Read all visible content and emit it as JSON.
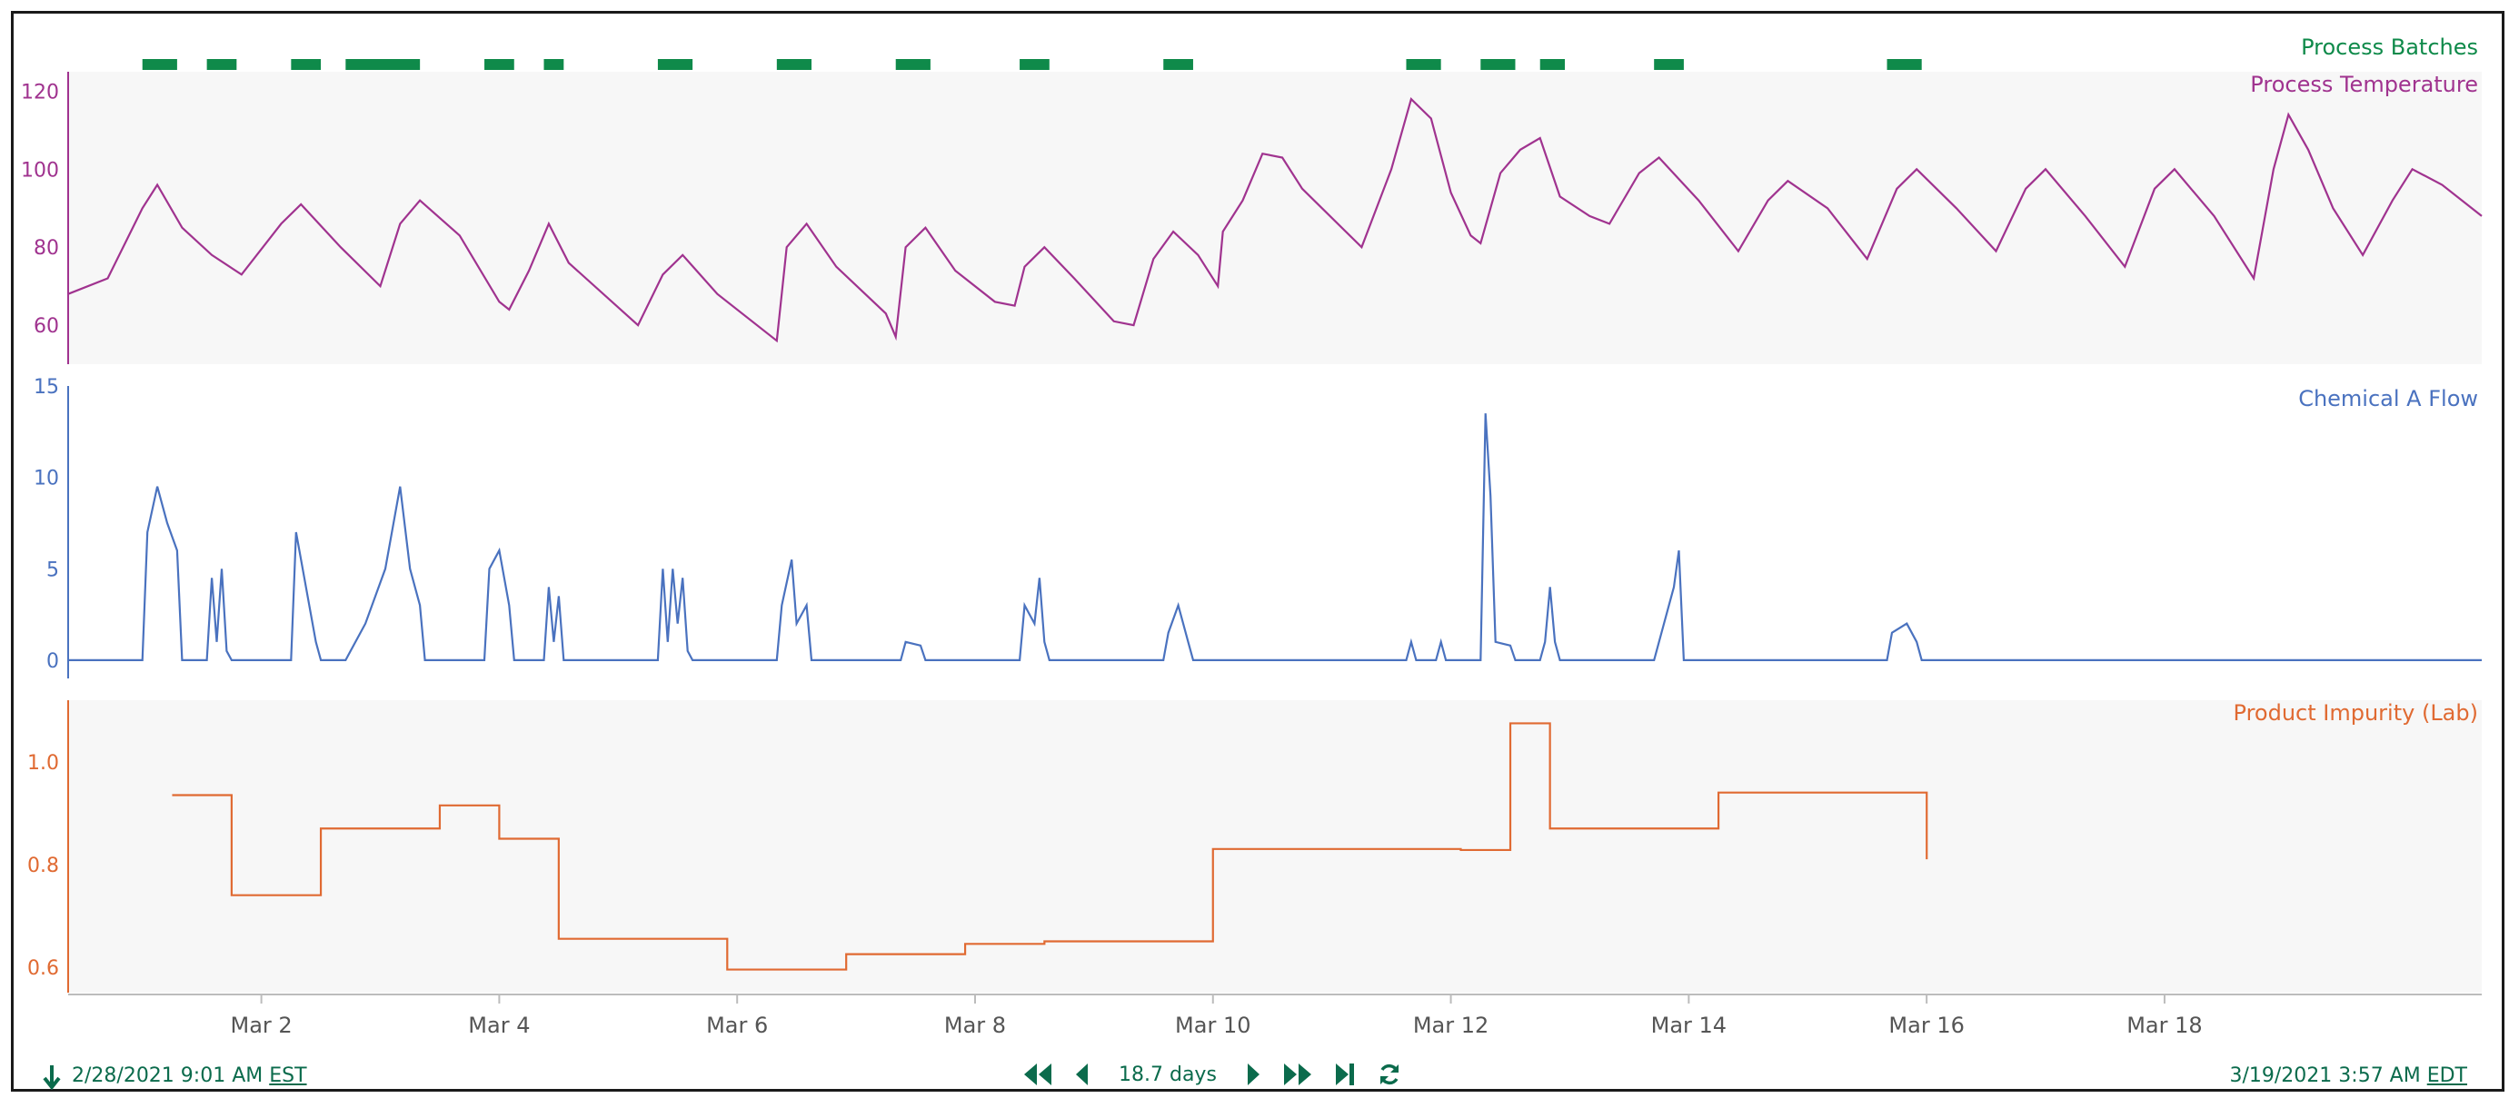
{
  "colors": {
    "batch": "#0f8a4a",
    "temperature": "#a0338f",
    "flow": "#4a72bf",
    "impurity": "#e06a32",
    "panel_bg": "#f7f7f7",
    "axis_text": "#555555",
    "nav": "#0b6b4c"
  },
  "footer": {
    "start_time": "2/28/2021 9:01 AM",
    "start_tz": "EST",
    "end_time": "3/19/2021 3:57 AM",
    "end_tz": "EDT",
    "duration": "18.7 days"
  },
  "icons": {
    "download": "down-arrow-icon",
    "fast_back": "fast-back-icon",
    "back": "back-icon",
    "forward": "forward-icon",
    "fast_forward": "fast-forward-icon",
    "jump_end": "jump-to-end-icon",
    "refresh": "refresh-icon"
  },
  "chart_data": [
    {
      "type": "timeline",
      "title": "Process Batches",
      "x_range": [
        "2021-02-28T09:01",
        "2021-03-19T03:57"
      ],
      "batches": [
        [
          "2021-03-01T00:00",
          "2021-03-01T07:00"
        ],
        [
          "2021-03-01T13:00",
          "2021-03-01T19:00"
        ],
        [
          "2021-03-02T06:00",
          "2021-03-02T12:00"
        ],
        [
          "2021-03-02T17:00",
          "2021-03-03T08:00"
        ],
        [
          "2021-03-03T21:00",
          "2021-03-04T03:00"
        ],
        [
          "2021-03-04T09:00",
          "2021-03-04T13:00"
        ],
        [
          "2021-03-05T08:00",
          "2021-03-05T15:00"
        ],
        [
          "2021-03-06T08:00",
          "2021-03-06T15:00"
        ],
        [
          "2021-03-07T08:00",
          "2021-03-07T15:00"
        ],
        [
          "2021-03-08T09:00",
          "2021-03-08T15:00"
        ],
        [
          "2021-03-09T14:00",
          "2021-03-09T20:00"
        ],
        [
          "2021-03-11T15:00",
          "2021-03-11T22:00"
        ],
        [
          "2021-03-12T06:00",
          "2021-03-12T13:00"
        ],
        [
          "2021-03-12T18:00",
          "2021-03-12T23:00"
        ],
        [
          "2021-03-13T17:00",
          "2021-03-13T23:00"
        ],
        [
          "2021-03-15T16:00",
          "2021-03-15T23:00"
        ]
      ]
    },
    {
      "type": "line",
      "title": "Process Temperature",
      "ylim": [
        50,
        125
      ],
      "yticks": [
        60,
        80,
        100,
        120
      ],
      "series": [
        {
          "points": [
            [
              "2021-02-28T09:01",
              68
            ],
            [
              "2021-02-28T17:00",
              72
            ],
            [
              "2021-03-01T00:00",
              90
            ],
            [
              "2021-03-01T03:00",
              96
            ],
            [
              "2021-03-01T08:00",
              85
            ],
            [
              "2021-03-01T14:00",
              78
            ],
            [
              "2021-03-01T20:00",
              73
            ],
            [
              "2021-03-02T04:00",
              86
            ],
            [
              "2021-03-02T08:00",
              91
            ],
            [
              "2021-03-02T16:00",
              80
            ],
            [
              "2021-03-03T00:00",
              70
            ],
            [
              "2021-03-03T04:00",
              86
            ],
            [
              "2021-03-03T08:00",
              92
            ],
            [
              "2021-03-03T16:00",
              83
            ],
            [
              "2021-03-04T00:00",
              66
            ],
            [
              "2021-03-04T02:00",
              64
            ],
            [
              "2021-03-04T06:00",
              74
            ],
            [
              "2021-03-04T10:00",
              86
            ],
            [
              "2021-03-04T14:00",
              76
            ],
            [
              "2021-03-05T04:00",
              60
            ],
            [
              "2021-03-05T09:00",
              73
            ],
            [
              "2021-03-05T13:00",
              78
            ],
            [
              "2021-03-05T20:00",
              68
            ],
            [
              "2021-03-06T08:00",
              56
            ],
            [
              "2021-03-06T10:00",
              80
            ],
            [
              "2021-03-06T14:00",
              86
            ],
            [
              "2021-03-06T20:00",
              75
            ],
            [
              "2021-03-07T06:00",
              63
            ],
            [
              "2021-03-07T08:00",
              57
            ],
            [
              "2021-03-07T10:00",
              80
            ],
            [
              "2021-03-07T14:00",
              85
            ],
            [
              "2021-03-07T20:00",
              74
            ],
            [
              "2021-03-08T04:00",
              66
            ],
            [
              "2021-03-08T08:00",
              65
            ],
            [
              "2021-03-08T10:00",
              75
            ],
            [
              "2021-03-08T14:00",
              80
            ],
            [
              "2021-03-08T20:00",
              72
            ],
            [
              "2021-03-09T04:00",
              61
            ],
            [
              "2021-03-09T08:00",
              60
            ],
            [
              "2021-03-09T12:00",
              77
            ],
            [
              "2021-03-09T16:00",
              84
            ],
            [
              "2021-03-09T21:00",
              78
            ],
            [
              "2021-03-10T01:00",
              70
            ],
            [
              "2021-03-10T02:00",
              84
            ],
            [
              "2021-03-10T06:00",
              92
            ],
            [
              "2021-03-10T10:00",
              104
            ],
            [
              "2021-03-10T14:00",
              103
            ],
            [
              "2021-03-10T18:00",
              95
            ],
            [
              "2021-03-11T06:00",
              80
            ],
            [
              "2021-03-11T12:00",
              100
            ],
            [
              "2021-03-11T16:00",
              118
            ],
            [
              "2021-03-11T20:00",
              113
            ],
            [
              "2021-03-12T00:00",
              94
            ],
            [
              "2021-03-12T04:00",
              83
            ],
            [
              "2021-03-12T06:00",
              81
            ],
            [
              "2021-03-12T10:00",
              99
            ],
            [
              "2021-03-12T14:00",
              105
            ],
            [
              "2021-03-12T18:00",
              108
            ],
            [
              "2021-03-12T22:00",
              93
            ],
            [
              "2021-03-13T04:00",
              88
            ],
            [
              "2021-03-13T08:00",
              86
            ],
            [
              "2021-03-13T14:00",
              99
            ],
            [
              "2021-03-13T18:00",
              103
            ],
            [
              "2021-03-14T02:00",
              92
            ],
            [
              "2021-03-14T10:00",
              79
            ],
            [
              "2021-03-14T16:00",
              92
            ],
            [
              "2021-03-14T20:00",
              97
            ],
            [
              "2021-03-15T04:00",
              90
            ],
            [
              "2021-03-15T12:00",
              77
            ],
            [
              "2021-03-15T18:00",
              95
            ],
            [
              "2021-03-15T22:00",
              100
            ],
            [
              "2021-03-16T06:00",
              90
            ],
            [
              "2021-03-16T14:00",
              79
            ],
            [
              "2021-03-16T20:00",
              95
            ],
            [
              "2021-03-17T00:00",
              100
            ],
            [
              "2021-03-17T08:00",
              88
            ],
            [
              "2021-03-17T16:00",
              75
            ],
            [
              "2021-03-17T22:00",
              95
            ],
            [
              "2021-03-18T02:00",
              100
            ],
            [
              "2021-03-18T10:00",
              88
            ],
            [
              "2021-03-18T18:00",
              72
            ],
            [
              "2021-03-18T22:00",
              100
            ],
            [
              "2021-03-19T01:00",
              114
            ],
            [
              "2021-03-19T05:00",
              105
            ],
            [
              "2021-03-19T10:00",
              90
            ],
            [
              "2021-03-19T16:00",
              78
            ],
            [
              "2021-03-19T22:00",
              92
            ],
            [
              "2021-03-20T02:00",
              100
            ],
            [
              "2021-03-20T08:00",
              96
            ],
            [
              "2021-03-20T16:00",
              88
            ]
          ]
        }
      ]
    },
    {
      "type": "line",
      "title": "Chemical A Flow",
      "ylim": [
        -1,
        15
      ],
      "yticks": [
        0,
        5,
        10,
        15
      ],
      "series": [
        {
          "points": [
            [
              "2021-02-28T09:01",
              0
            ],
            [
              "2021-03-01T00:00",
              0
            ],
            [
              "2021-03-01T01:00",
              7
            ],
            [
              "2021-03-01T03:00",
              9.5
            ],
            [
              "2021-03-01T05:00",
              7.5
            ],
            [
              "2021-03-01T07:00",
              6
            ],
            [
              "2021-03-01T08:00",
              0
            ],
            [
              "2021-03-01T13:00",
              0
            ],
            [
              "2021-03-01T14:00",
              4.5
            ],
            [
              "2021-03-01T15:00",
              1
            ],
            [
              "2021-03-01T16:00",
              5
            ],
            [
              "2021-03-01T17:00",
              0.5
            ],
            [
              "2021-03-01T18:00",
              0
            ],
            [
              "2021-03-02T06:00",
              0
            ],
            [
              "2021-03-02T07:00",
              7
            ],
            [
              "2021-03-02T09:00",
              4
            ],
            [
              "2021-03-02T11:00",
              1
            ],
            [
              "2021-03-02T12:00",
              0
            ],
            [
              "2021-03-02T17:00",
              0
            ],
            [
              "2021-03-02T21:00",
              2
            ],
            [
              "2021-03-03T01:00",
              5
            ],
            [
              "2021-03-03T04:00",
              9.5
            ],
            [
              "2021-03-03T06:00",
              5
            ],
            [
              "2021-03-03T08:00",
              3
            ],
            [
              "2021-03-03T09:00",
              0
            ],
            [
              "2021-03-03T21:00",
              0
            ],
            [
              "2021-03-03T22:00",
              5
            ],
            [
              "2021-03-04T00:00",
              6
            ],
            [
              "2021-03-04T02:00",
              3
            ],
            [
              "2021-03-04T03:00",
              0
            ],
            [
              "2021-03-04T09:00",
              0
            ],
            [
              "2021-03-04T10:00",
              4
            ],
            [
              "2021-03-04T11:00",
              1
            ],
            [
              "2021-03-04T12:00",
              3.5
            ],
            [
              "2021-03-04T13:00",
              0
            ],
            [
              "2021-03-05T08:00",
              0
            ],
            [
              "2021-03-05T09:00",
              5
            ],
            [
              "2021-03-05T10:00",
              1
            ],
            [
              "2021-03-05T11:00",
              5
            ],
            [
              "2021-03-05T12:00",
              2
            ],
            [
              "2021-03-05T13:00",
              4.5
            ],
            [
              "2021-03-05T14:00",
              0.5
            ],
            [
              "2021-03-05T15:00",
              0
            ],
            [
              "2021-03-06T08:00",
              0
            ],
            [
              "2021-03-06T09:00",
              3
            ],
            [
              "2021-03-06T11:00",
              5.5
            ],
            [
              "2021-03-06T12:00",
              2
            ],
            [
              "2021-03-06T14:00",
              3
            ],
            [
              "2021-03-06T15:00",
              0
            ],
            [
              "2021-03-07T09:00",
              0
            ],
            [
              "2021-03-07T10:00",
              1
            ],
            [
              "2021-03-07T13:00",
              0.8
            ],
            [
              "2021-03-07T14:00",
              0
            ],
            [
              "2021-03-08T09:00",
              0
            ],
            [
              "2021-03-08T10:00",
              3
            ],
            [
              "2021-03-08T12:00",
              2
            ],
            [
              "2021-03-08T13:00",
              4.5
            ],
            [
              "2021-03-08T14:00",
              1
            ],
            [
              "2021-03-08T15:00",
              0
            ],
            [
              "2021-03-09T14:00",
              0
            ],
            [
              "2021-03-09T15:00",
              1.5
            ],
            [
              "2021-03-09T17:00",
              3
            ],
            [
              "2021-03-09T19:00",
              1
            ],
            [
              "2021-03-09T20:00",
              0
            ],
            [
              "2021-03-11T15:00",
              0
            ],
            [
              "2021-03-11T16:00",
              1
            ],
            [
              "2021-03-11T17:00",
              0
            ],
            [
              "2021-03-11T21:00",
              0
            ],
            [
              "2021-03-11T22:00",
              1
            ],
            [
              "2021-03-11T23:00",
              0
            ],
            [
              "2021-03-12T06:00",
              0
            ],
            [
              "2021-03-12T07:00",
              13.5
            ],
            [
              "2021-03-12T08:00",
              9
            ],
            [
              "2021-03-12T09:00",
              1
            ],
            [
              "2021-03-12T12:00",
              0.8
            ],
            [
              "2021-03-12T13:00",
              0
            ],
            [
              "2021-03-12T18:00",
              0
            ],
            [
              "2021-03-12T19:00",
              1
            ],
            [
              "2021-03-12T20:00",
              4
            ],
            [
              "2021-03-12T21:00",
              1
            ],
            [
              "2021-03-12T22:00",
              0
            ],
            [
              "2021-03-13T17:00",
              0
            ],
            [
              "2021-03-13T19:00",
              2
            ],
            [
              "2021-03-13T21:00",
              4
            ],
            [
              "2021-03-13T22:00",
              6
            ],
            [
              "2021-03-13T23:00",
              0
            ],
            [
              "2021-03-15T16:00",
              0
            ],
            [
              "2021-03-15T17:00",
              1.5
            ],
            [
              "2021-03-15T20:00",
              2
            ],
            [
              "2021-03-15T22:00",
              1
            ],
            [
              "2021-03-15T23:00",
              0
            ],
            [
              "2021-03-20T16:00",
              0
            ]
          ]
        }
      ]
    },
    {
      "type": "step",
      "title": "Product Impurity (Lab)",
      "ylim": [
        0.55,
        1.12
      ],
      "yticks": [
        0.6,
        0.8,
        1.0
      ],
      "ytick_labels": [
        "0.6",
        "0.8",
        "1.0"
      ],
      "series": [
        {
          "points": [
            [
              "2021-03-01T06:00",
              0.935
            ],
            [
              "2021-03-01T18:00",
              0.74
            ],
            [
              "2021-03-02T12:00",
              0.87
            ],
            [
              "2021-03-03T12:00",
              0.915
            ],
            [
              "2021-03-04T00:00",
              0.85
            ],
            [
              "2021-03-04T12:00",
              0.655
            ],
            [
              "2021-03-05T22:00",
              0.595
            ],
            [
              "2021-03-06T22:00",
              0.625
            ],
            [
              "2021-03-07T22:00",
              0.645
            ],
            [
              "2021-03-08T14:00",
              0.65
            ],
            [
              "2021-03-10T00:00",
              0.83
            ],
            [
              "2021-03-12T02:00",
              0.828
            ],
            [
              "2021-03-12T12:00",
              1.075
            ],
            [
              "2021-03-12T20:00",
              0.87
            ],
            [
              "2021-03-14T06:00",
              0.94
            ],
            [
              "2021-03-16T00:00",
              0.94
            ],
            [
              "2021-03-16T00:01",
              0.81
            ]
          ]
        }
      ]
    }
  ],
  "x_axis": {
    "ticks": [
      {
        "date": "2021-03-02T00:00",
        "label": "Mar 2"
      },
      {
        "date": "2021-03-04T00:00",
        "label": "Mar 4"
      },
      {
        "date": "2021-03-06T00:00",
        "label": "Mar 6"
      },
      {
        "date": "2021-03-08T00:00",
        "label": "Mar 8"
      },
      {
        "date": "2021-03-10T00:00",
        "label": "Mar 10"
      },
      {
        "date": "2021-03-12T00:00",
        "label": "Mar 12"
      },
      {
        "date": "2021-03-14T00:00",
        "label": "Mar 14"
      },
      {
        "date": "2021-03-16T00:00",
        "label": "Mar 16"
      },
      {
        "date": "2021-03-18T00:00",
        "label": "Mar 18"
      }
    ],
    "range": [
      "2021-02-28T09:01",
      "2021-03-20T16:00"
    ]
  }
}
